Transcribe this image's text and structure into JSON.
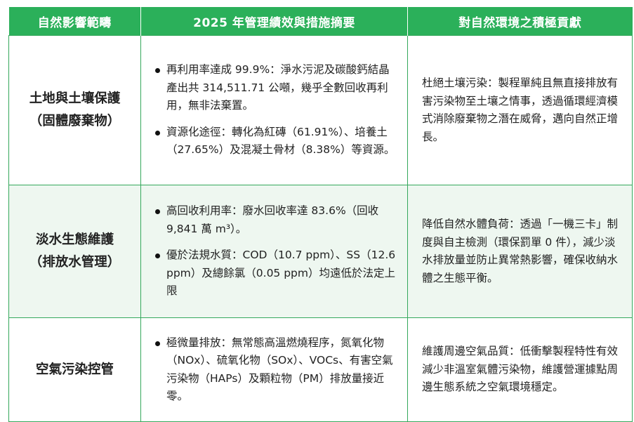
{
  "header": {
    "col1": "自然影響範疇",
    "col2": "2025 年管理績效與措施摘要",
    "col3": "對自然環境之積極貢獻"
  },
  "rows": [
    {
      "cat_line1": "土地與土壤保護",
      "cat_line2": "（固體廢棄物）",
      "bullets": [
        "再利用率達成 99.9%：淨水污泥及碳酸鈣結晶產出共 314,511.71 公噸，幾乎全數回收再利用，無非法棄置。",
        "資源化途徑：轉化為紅磚（61.91%）、培養土（27.65%）及混凝土骨材（8.38%）等資源。"
      ],
      "contribution": "杜絕土壤污染：製程單純且無直接排放有害污染物至土壤之情事，透過循環經濟模式消除廢棄物之潛在威脅，邁向自然正增長。"
    },
    {
      "cat_line1": "淡水生態維護",
      "cat_line2": "（排放水管理）",
      "bullets": [
        "高回收利用率：廢水回收率達 83.6%（回收 9,841 萬 m³）。",
        "優於法規水質：COD（10.7 ppm）、SS（12.6 ppm）及總餘氯（0.05 ppm）均遠低於法定上限"
      ],
      "contribution": "降低自然水體負荷：透過「一機三卡」制度與自主檢測（環保罰單 0 件），減少淡水排放量並防止異常熱影響，確保收納水體之生態平衡。"
    },
    {
      "cat_line1": "空氣污染控管",
      "cat_line2": "",
      "bullets": [
        "極微量排放：無常態高溫燃燒程序，氮氧化物（NOx）、硫氧化物（SOx）、VOCs、有害空氣污染物（HAPs）及顆粒物（PM）排放量接近零。"
      ],
      "contribution": "維護周邊空氣品質：低衝擊製程特性有效減少非溫室氣體污染物，維護營運據點周邊生態系統之空氣環境穩定。"
    }
  ]
}
